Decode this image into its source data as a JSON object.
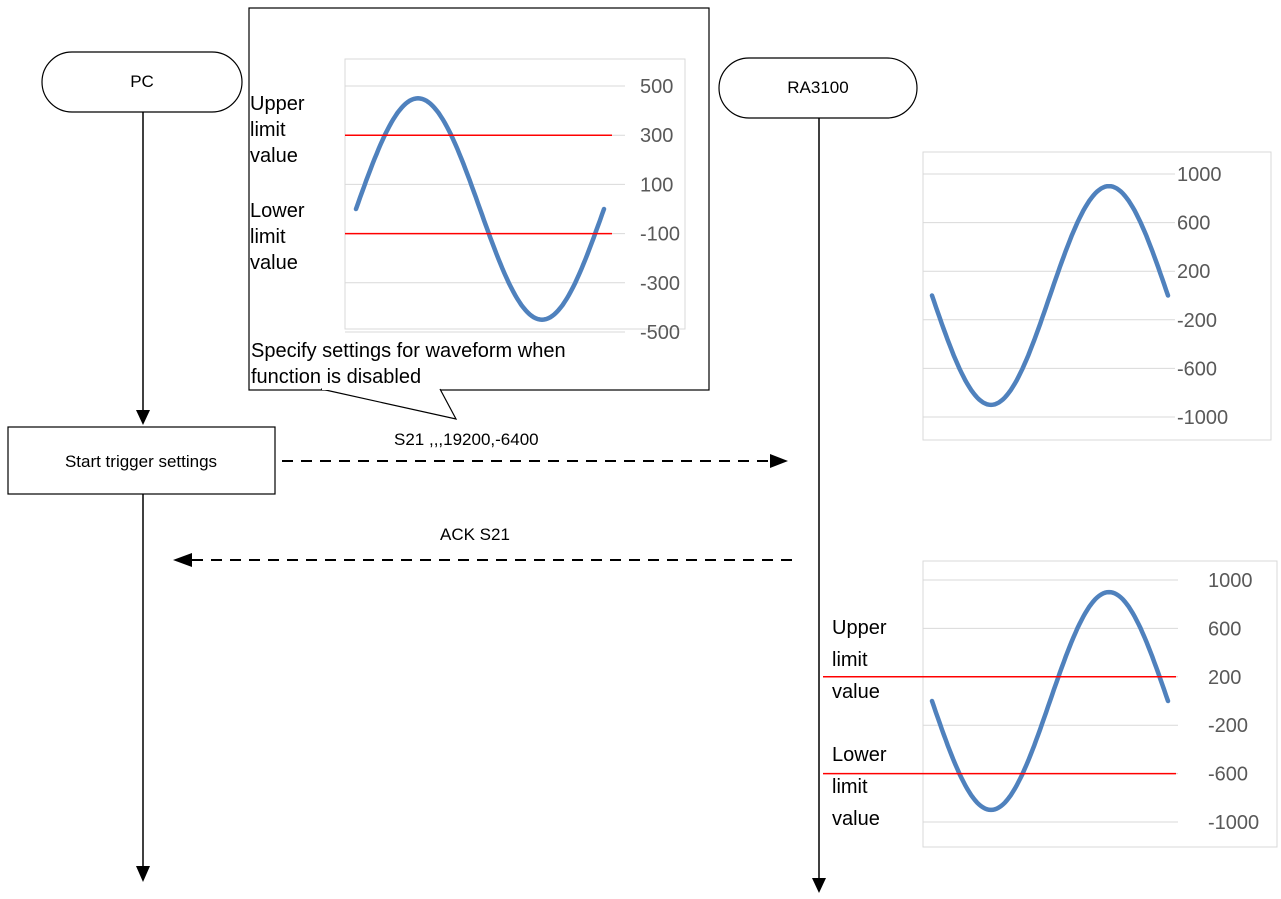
{
  "actors": {
    "pc": "PC",
    "device": "RA3100"
  },
  "process_box": "Start trigger settings",
  "messages": {
    "request": "S21 ,,,19200,-6400",
    "response": "ACK S21"
  },
  "callout": {
    "line1": "Specify settings for waveform when",
    "line2": "function is disabled"
  },
  "limit_labels": {
    "upper": [
      "Upper",
      "limit",
      "value"
    ],
    "lower": [
      "Lower",
      "limit",
      "value"
    ]
  },
  "colors": {
    "waveform": "#4f81bd",
    "limit_line": "#ff0000",
    "gridline": "#d9d9d9",
    "tick_text": "#595959"
  },
  "chart_data": [
    {
      "type": "line",
      "y_ticks": [
        "500",
        "300",
        "100",
        "-100",
        "-300",
        "-500"
      ],
      "ylim": [
        -500,
        500
      ],
      "series": [
        {
          "shape": "sine",
          "amplitude": 450,
          "phase": "rising"
        }
      ],
      "limits": {
        "upper": 300,
        "lower": -100
      }
    },
    {
      "type": "line",
      "y_ticks": [
        "1000",
        "600",
        "200",
        "-200",
        "-600",
        "-1000"
      ],
      "ylim": [
        -1000,
        1000
      ],
      "series": [
        {
          "shape": "sine",
          "amplitude": 900,
          "phase": "falling"
        }
      ]
    },
    {
      "type": "line",
      "y_ticks": [
        "1000",
        "600",
        "200",
        "-200",
        "-600",
        "-1000"
      ],
      "ylim": [
        -1000,
        1000
      ],
      "series": [
        {
          "shape": "sine",
          "amplitude": 900,
          "phase": "falling"
        }
      ],
      "limits": {
        "upper": 200,
        "lower": -600
      }
    }
  ]
}
